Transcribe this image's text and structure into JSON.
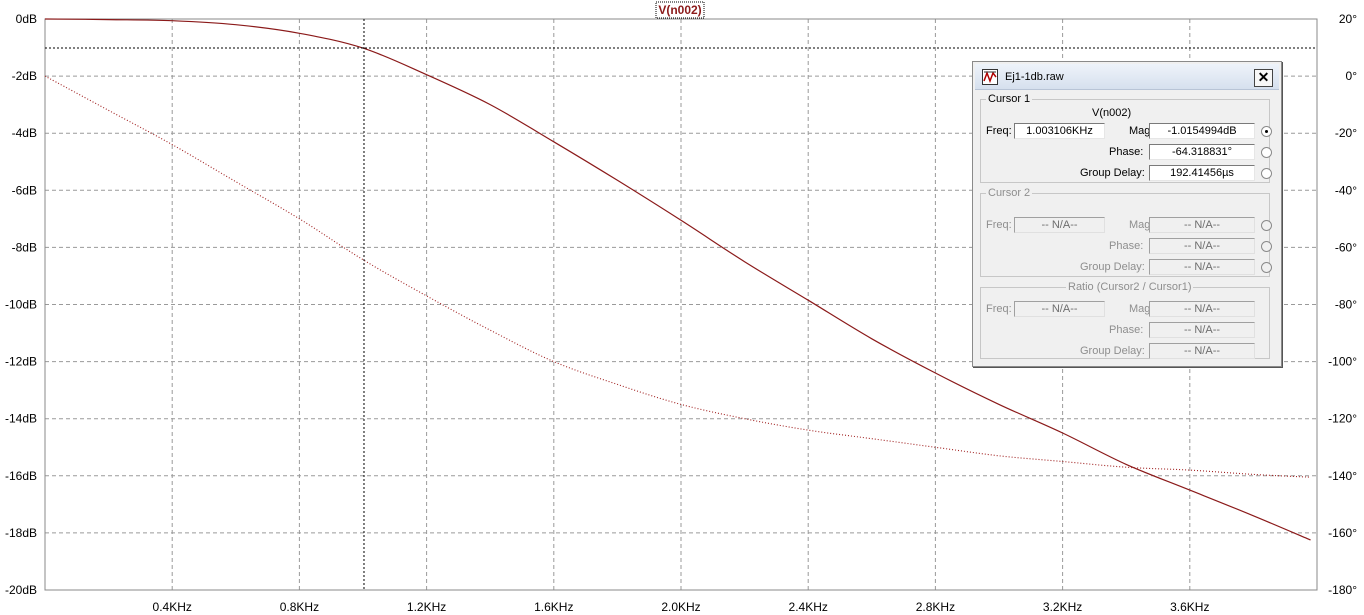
{
  "chart_data": {
    "type": "line",
    "title": "V(n002)",
    "x_ticks": [
      "0.4KHz",
      "0.8KHz",
      "1.2KHz",
      "1.6KHz",
      "2.0KHz",
      "2.4KHz",
      "2.8KHz",
      "3.2KHz",
      "3.6KHz"
    ],
    "y_left_ticks": [
      "0dB",
      "-2dB",
      "-4dB",
      "-6dB",
      "-8dB",
      "-10dB",
      "-12dB",
      "-14dB",
      "-16dB",
      "-18dB",
      "-20dB"
    ],
    "y_right_ticks": [
      "20°",
      "0°",
      "-20°",
      "-40°",
      "-60°",
      "-80°",
      "-100°",
      "-120°",
      "-140°",
      "-160°",
      "-180°"
    ],
    "xlim": [
      0,
      4.0
    ],
    "ylim_left": [
      -20,
      0
    ],
    "ylim_right": [
      -180,
      20
    ],
    "grid": true,
    "cursor": {
      "freq": 1.003106,
      "mag": -1.0155
    },
    "series": [
      {
        "axis": "left",
        "style": "solid",
        "color": "#8b1a1a",
        "x": [
          0,
          0.2,
          0.4,
          0.6,
          0.8,
          1.0,
          1.2,
          1.4,
          1.6,
          1.8,
          2.0,
          2.2,
          2.4,
          2.6,
          2.8,
          3.0,
          3.2,
          3.4,
          3.6,
          3.8,
          3.98
        ],
        "y": [
          0,
          -0.02,
          -0.06,
          -0.2,
          -0.5,
          -1.02,
          -1.95,
          -3.0,
          -4.3,
          -5.65,
          -7.05,
          -8.5,
          -9.85,
          -11.2,
          -12.4,
          -13.5,
          -14.5,
          -15.6,
          -16.5,
          -17.4,
          -18.25
        ]
      },
      {
        "axis": "right",
        "style": "dotted",
        "color": "#a02020",
        "x": [
          0,
          0.2,
          0.4,
          0.6,
          0.8,
          1.0,
          1.2,
          1.4,
          1.6,
          1.8,
          2.0,
          2.2,
          2.4,
          2.6,
          2.8,
          3.0,
          3.2,
          3.4,
          3.6,
          3.8,
          3.98
        ],
        "y": [
          0,
          -12,
          -24,
          -37,
          -50,
          -64.3,
          -77,
          -89,
          -100,
          -108,
          -115,
          -120,
          -124,
          -127,
          -130,
          -133,
          -135,
          -137,
          -138,
          -139.5,
          -140.5
        ]
      }
    ]
  },
  "cursor_window": {
    "title": "Ej1-1db.raw",
    "close_glyph": "✕",
    "cursor1": {
      "legend": "Cursor 1",
      "trace": "V(n002)",
      "freq_label": "Freq:",
      "freq": "1.003106KHz",
      "mag_label": "Mag:",
      "mag": "-1.0154994dB",
      "phase_label": "Phase:",
      "phase": "-64.318831°",
      "gd_label": "Group Delay:",
      "gd": "192.41456µs"
    },
    "cursor2": {
      "legend": "Cursor 2",
      "freq_label": "Freq:",
      "freq": "-- N/A--",
      "mag_label": "Mag:",
      "mag": "-- N/A--",
      "phase_label": "Phase:",
      "phase": "-- N/A--",
      "gd_label": "Group Delay:",
      "gd": "-- N/A--"
    },
    "ratio": {
      "legend": "Ratio (Cursor2 / Cursor1)",
      "freq_label": "Freq:",
      "freq": "-- N/A--",
      "mag_label": "Mag:",
      "mag": "-- N/A--",
      "phase_label": "Phase:",
      "phase": "-- N/A--",
      "gd_label": "Group Delay:",
      "gd": "-- N/A--"
    }
  }
}
